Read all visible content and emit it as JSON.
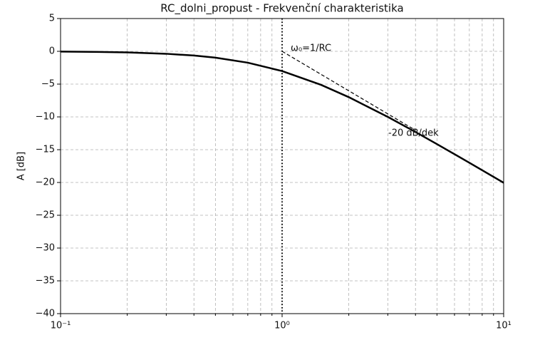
{
  "chart_data": {
    "type": "line",
    "title": "RC_dolni_propust - Frekvenční charakteristika",
    "ylabel": "A [dB]",
    "log_x": true,
    "grid": true,
    "xlim": [
      0.1,
      10
    ],
    "xticks": [
      {
        "value": 0.1,
        "label": "10⁻¹"
      },
      {
        "value": 1,
        "label": "10⁰"
      },
      {
        "value": 10,
        "label": "10¹"
      }
    ],
    "xminorticks": [
      0.2,
      0.3,
      0.4,
      0.5,
      0.6,
      0.7,
      0.8,
      0.9,
      2,
      3,
      4,
      5,
      6,
      7,
      8,
      9
    ],
    "ylim": [
      -40,
      5
    ],
    "yticks": [
      5,
      0,
      {
        "value": -5,
        "label": "−5"
      },
      {
        "value": -10,
        "label": "−10"
      },
      {
        "value": -15,
        "label": "−15"
      },
      {
        "value": -20,
        "label": "−20"
      },
      {
        "value": -25,
        "label": "−25"
      },
      {
        "value": -30,
        "label": "−30"
      },
      {
        "value": -35,
        "label": "−35"
      },
      {
        "value": -40,
        "label": "−40"
      }
    ],
    "x": [
      0.1,
      0.15,
      0.2,
      0.3,
      0.4,
      0.5,
      0.7,
      1,
      1.5,
      2,
      3,
      4,
      5,
      7,
      10
    ],
    "series": [
      {
        "color": "#000000",
        "values": [
          -0.043,
          -0.097,
          -0.17,
          -0.374,
          -0.645,
          -0.969,
          -1.732,
          -3.01,
          -5.119,
          -6.99,
          -10,
          -12.304,
          -14.15,
          -16.99,
          -20.043
        ]
      }
    ],
    "asymptote": {
      "x": [
        1,
        4
      ],
      "values": [
        0,
        -12.04
      ],
      "color": "#000000"
    },
    "vline": {
      "x": 1,
      "color": "#000000"
    },
    "annotations": [
      "ω₀=1/RC",
      "-20 dB/dek"
    ]
  }
}
